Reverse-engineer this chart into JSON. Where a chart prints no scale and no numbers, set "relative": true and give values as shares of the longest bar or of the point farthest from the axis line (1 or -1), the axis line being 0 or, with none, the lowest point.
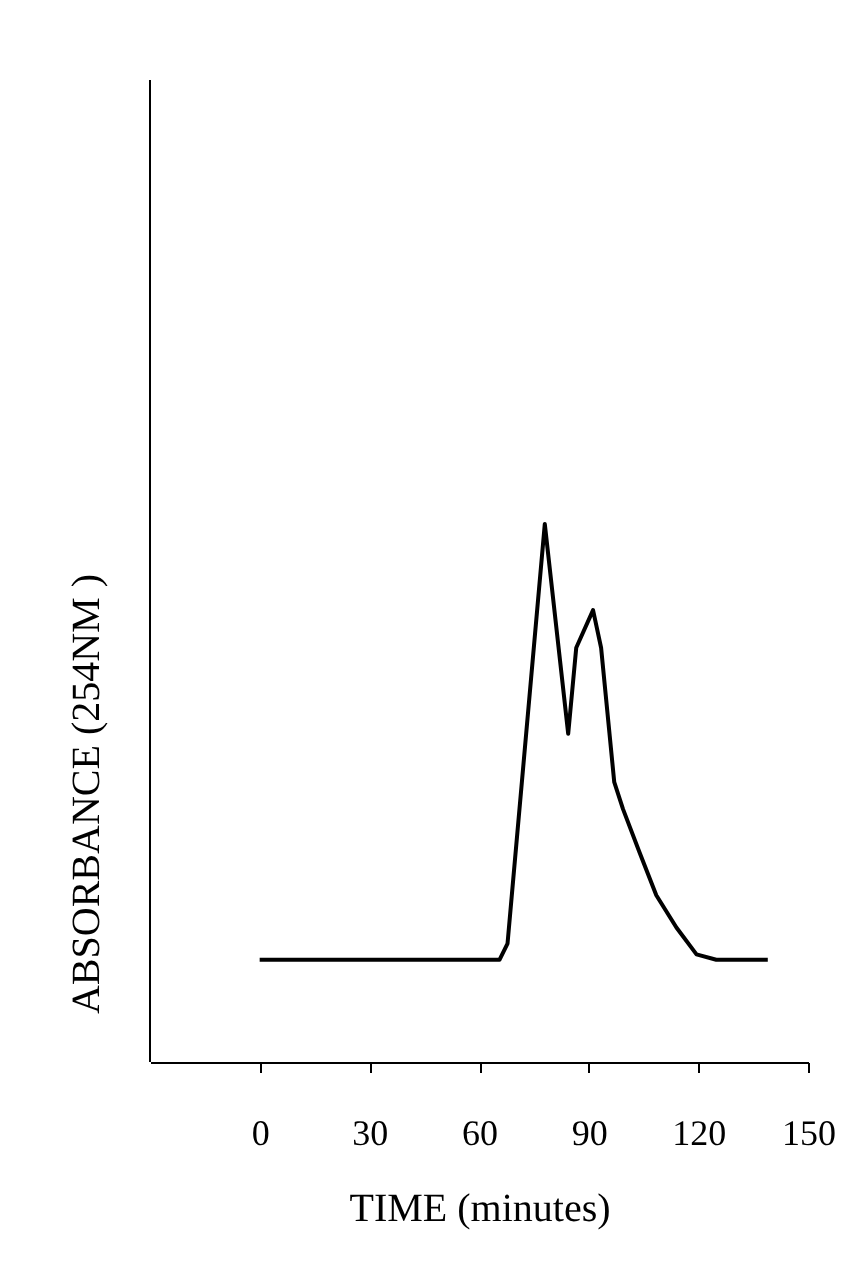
{
  "chart_data": {
    "type": "line",
    "relative": true,
    "xlabel": "TIME (minutes)",
    "ylabel": "ABSORBANCE (254NM )",
    "x": [
      0,
      65.6,
      67.8,
      78.0,
      84.4,
      86.6,
      91.2,
      93.4,
      97.0,
      99.4,
      103.9,
      108.5,
      114.0,
      119.5,
      124.9,
      139.0
    ],
    "series": [
      {
        "color": "#000000",
        "values": [
          0.19,
          0.19,
          0.22,
          1,
          0.61,
          0.77,
          0.84,
          0.77,
          0.52,
          0.47,
          0.39,
          0.31,
          0.25,
          0.2,
          0.19,
          0.19
        ]
      }
    ],
    "xlim": [
      -30,
      150
    ],
    "xticks": [
      0,
      30,
      60,
      90,
      120,
      150
    ],
    "grid": false,
    "marker": "none",
    "line_style": "solid"
  }
}
